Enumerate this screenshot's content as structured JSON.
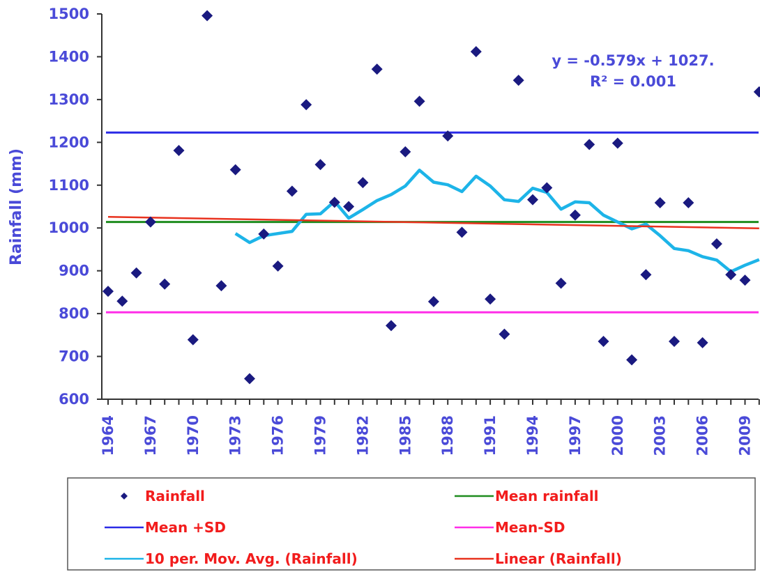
{
  "chart_data": {
    "type": "scatter",
    "ylabel": "Rainfall (mm)",
    "ylim": [
      600,
      1500
    ],
    "yticks": [
      "600",
      "700",
      "800",
      "900",
      "1000",
      "1100",
      "1200",
      "1300",
      "1400",
      "1500"
    ],
    "x_tick_labels": [
      "1964",
      "1967",
      "1970",
      "1973",
      "1976",
      "1979",
      "1982",
      "1985",
      "1988",
      "1991",
      "1994",
      "1997",
      "2000",
      "2003",
      "2006",
      "2009"
    ],
    "x_tick_years": [
      1964,
      1967,
      1970,
      1973,
      1976,
      1979,
      1982,
      1985,
      1988,
      1991,
      1994,
      1997,
      2000,
      2003,
      2006,
      2009
    ],
    "xlim": [
      1964,
      2010
    ],
    "grid": false,
    "legend_position": "bottom",
    "series": [
      {
        "name": "Rainfall",
        "kind": "markers",
        "color": "#1a1a80",
        "points": [
          [
            1964,
            852
          ],
          [
            1965,
            829
          ],
          [
            1966,
            895
          ],
          [
            1967,
            1014
          ],
          [
            1968,
            869
          ],
          [
            1969,
            1181
          ],
          [
            1970,
            739
          ],
          [
            1971,
            1496
          ],
          [
            1972,
            865
          ],
          [
            1973,
            1136
          ],
          [
            1974,
            648
          ],
          [
            1975,
            986
          ],
          [
            1976,
            911
          ],
          [
            1977,
            1086
          ],
          [
            1978,
            1288
          ],
          [
            1979,
            1148
          ],
          [
            1980,
            1060
          ],
          [
            1981,
            1050
          ],
          [
            1982,
            1106
          ],
          [
            1983,
            1371
          ],
          [
            1984,
            772
          ],
          [
            1985,
            1178
          ],
          [
            1986,
            1296
          ],
          [
            1987,
            828
          ],
          [
            1988,
            1215
          ],
          [
            1989,
            990
          ],
          [
            1990,
            1412
          ],
          [
            1991,
            834
          ],
          [
            1992,
            752
          ],
          [
            1993,
            1345
          ],
          [
            1994,
            1066
          ],
          [
            1995,
            1094
          ],
          [
            1996,
            871
          ],
          [
            1997,
            1030
          ],
          [
            1998,
            1195
          ],
          [
            1999,
            735
          ],
          [
            2000,
            1198
          ],
          [
            2001,
            692
          ],
          [
            2002,
            891
          ],
          [
            2003,
            1059
          ],
          [
            2004,
            735
          ],
          [
            2005,
            1059
          ],
          [
            2006,
            732
          ],
          [
            2007,
            963
          ],
          [
            2008,
            891
          ],
          [
            2009,
            878
          ],
          [
            2010,
            1318
          ]
        ]
      },
      {
        "name": "Mean rainfall",
        "kind": "hline",
        "color": "#1e8c1e",
        "value": 1014
      },
      {
        "name": "Mean +SD",
        "kind": "hline",
        "color": "#2a2ae6",
        "value": 1223
      },
      {
        "name": "Mean-SD",
        "kind": "hline",
        "color": "#ff2ee8",
        "value": 803
      },
      {
        "name": "10 per. Mov. Avg. (Rainfall)",
        "kind": "line",
        "color": "#1db4e8",
        "points": [
          [
            1973,
            987
          ],
          [
            1974,
            966
          ],
          [
            1975,
            982
          ],
          [
            1976,
            987
          ],
          [
            1977,
            992
          ],
          [
            1978,
            1032
          ],
          [
            1979,
            1033
          ],
          [
            1980,
            1062
          ],
          [
            1981,
            1023
          ],
          [
            1982,
            1043
          ],
          [
            1983,
            1064
          ],
          [
            1984,
            1078
          ],
          [
            1985,
            1098
          ],
          [
            1986,
            1135
          ],
          [
            1987,
            1107
          ],
          [
            1988,
            1101
          ],
          [
            1989,
            1085
          ],
          [
            1990,
            1121
          ],
          [
            1991,
            1098
          ],
          [
            1992,
            1066
          ],
          [
            1993,
            1062
          ],
          [
            1994,
            1093
          ],
          [
            1995,
            1083
          ],
          [
            1996,
            1044
          ],
          [
            1997,
            1061
          ],
          [
            1998,
            1059
          ],
          [
            1999,
            1030
          ],
          [
            2000,
            1014
          ],
          [
            2001,
            998
          ],
          [
            2002,
            1009
          ],
          [
            2003,
            982
          ],
          [
            2004,
            952
          ],
          [
            2005,
            947
          ],
          [
            2006,
            933
          ],
          [
            2007,
            925
          ],
          [
            2008,
            898
          ],
          [
            2009,
            913
          ],
          [
            2010,
            926
          ]
        ]
      },
      {
        "name": "Linear (Rainfall)",
        "kind": "line",
        "color": "#e8321e",
        "points": [
          [
            1964,
            1026
          ],
          [
            2010,
            999
          ]
        ]
      }
    ],
    "annotations": [
      "y = -0.579x + 1027.",
      "R² = 0.001"
    ]
  }
}
